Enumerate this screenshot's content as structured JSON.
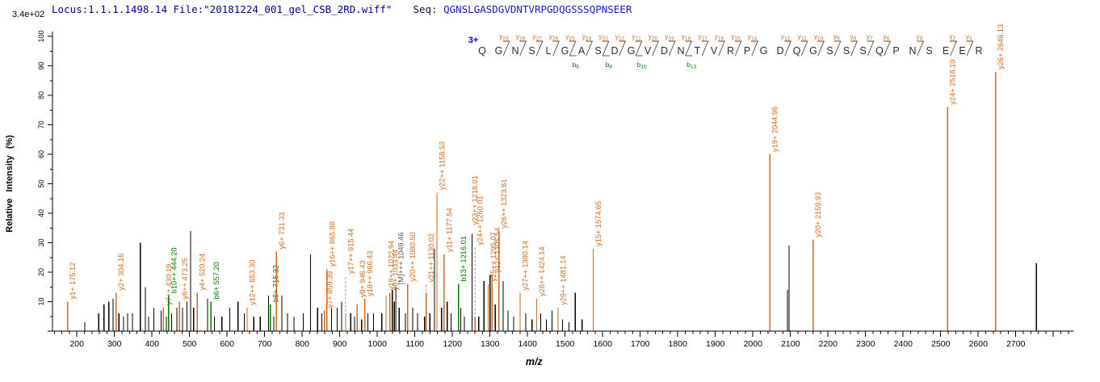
{
  "header": {
    "locus_file": "Locus:1.1.1.1498.14 File:\"20181224_001_gel_CSB_2RD.wiff\"",
    "seq_label": "Seq:",
    "sequence": "QGNSLGASDGVDNTVRPGDQGSSSQPNSEER"
  },
  "colors": {
    "y_ion": "#d2691e",
    "b_ion": "#007a00",
    "precursor": "#5a5a5a",
    "unassigned": "#000000",
    "axis": "#000000",
    "header_navy": "#00008b",
    "sequence_blue": "#1a1acd",
    "charge_blue": "#0000cc",
    "ladder_letter": "#2a2a2a",
    "connector_gray": "#999999"
  },
  "chart_data": {
    "type": "bar",
    "kind": "ms2-fragmentation-spectrum",
    "title": "",
    "xlabel": "m/z",
    "ylabel": "Relative Intensity (%)",
    "y_scale_note": "3.4e+02",
    "xlim": [
      135,
      2850
    ],
    "ylim": [
      0,
      100
    ],
    "x_major_tick_start": 200,
    "x_major_tick_end": 2700,
    "x_major_tick_step": 100,
    "x_minor_tick_step": 20,
    "y_major_tick_step": 10,
    "y_minor_tick_step": 5,
    "precursor_charge": "3+",
    "ladder": {
      "residues": [
        "Q",
        "G",
        "N",
        "S",
        "L",
        "G",
        "A",
        "S",
        "D",
        "G",
        "V",
        "D",
        "N",
        "T",
        "V",
        "R",
        "P",
        "G",
        "D",
        "Q",
        "G",
        "S",
        "S",
        "S",
        "Q",
        "P",
        "N",
        "S",
        "E",
        "E",
        "R"
      ],
      "y_ions": [
        {
          "pos": 2,
          "num": "29"
        },
        {
          "pos": 3,
          "num": "28"
        },
        {
          "pos": 4,
          "num": "27"
        },
        {
          "pos": 5,
          "num": "26"
        },
        {
          "pos": 6,
          "num": "25"
        },
        {
          "pos": 7,
          "num": "24"
        },
        {
          "pos": 8,
          "num": "23"
        },
        {
          "pos": 9,
          "num": "22"
        },
        {
          "pos": 10,
          "num": "21"
        },
        {
          "pos": 11,
          "num": "20"
        },
        {
          "pos": 12,
          "num": "19"
        },
        {
          "pos": 13,
          "num": "18"
        },
        {
          "pos": 14,
          "num": "17"
        },
        {
          "pos": 15,
          "num": "16"
        },
        {
          "pos": 16,
          "num": "15"
        },
        {
          "pos": 17,
          "num": "14"
        },
        {
          "pos": 19,
          "num": "12"
        },
        {
          "pos": 20,
          "num": "11"
        },
        {
          "pos": 21,
          "num": "10"
        },
        {
          "pos": 22,
          "num": "9"
        },
        {
          "pos": 23,
          "num": "8"
        },
        {
          "pos": 24,
          "num": "7"
        },
        {
          "pos": 25,
          "num": "6"
        },
        {
          "pos": 27,
          "num": "4"
        },
        {
          "pos": 29,
          "num": "2"
        },
        {
          "pos": 30,
          "num": "1"
        }
      ],
      "b_ions": [
        {
          "pos": 6,
          "num": "6"
        },
        {
          "pos": 8,
          "num": "8"
        },
        {
          "pos": 10,
          "num": "10"
        },
        {
          "pos": 13,
          "num": "13"
        }
      ]
    },
    "peaks": [
      {
        "mz": 175.12,
        "i": 10,
        "ion": "y",
        "label": "y1+ 175.12"
      },
      {
        "mz": 304.16,
        "i": 13,
        "ion": "y",
        "label": "y2+ 304.16"
      },
      {
        "mz": 430.19,
        "i": 8,
        "ion": "y",
        "label": "y7++ 430.19"
      },
      {
        "mz": 444.2,
        "i": 12,
        "ion": "b",
        "label": "b10++ 444.20"
      },
      {
        "mz": 473.25,
        "i": 10,
        "ion": "y",
        "label": "y8++ 473.25"
      },
      {
        "mz": 520.24,
        "i": 13,
        "ion": "y",
        "label": "y4+ 520.24"
      },
      {
        "mz": 557.2,
        "i": 10,
        "ion": "b",
        "label": "b6+ 557.20"
      },
      {
        "mz": 653.3,
        "i": 8,
        "ion": "y",
        "label": "y12++ 653.30"
      },
      {
        "mz": 715.32,
        "i": 9,
        "ion": "b",
        "label": "b8+ 715.32"
      },
      {
        "mz": 731.33,
        "i": 27,
        "ion": "y",
        "label": "y6+ 731.33"
      },
      {
        "mz": 859.39,
        "i": 7,
        "ion": "y",
        "label": "y7+ 859.39"
      },
      {
        "mz": 865.88,
        "i": 21,
        "ion": "y",
        "label": "y16++ 865.88"
      },
      {
        "mz": 915.44,
        "i": 6,
        "ion": "y",
        "label": "y17++ 915.44",
        "lift": 46,
        "dash": true
      },
      {
        "mz": 946.43,
        "i": 9,
        "ion": "y",
        "label": "y8+ 946.43",
        "lift": 6
      },
      {
        "mz": 966.43,
        "i": 11,
        "ion": "y",
        "label": "y18++ 966.43"
      },
      {
        "mz": 1022.94,
        "i": 12,
        "ion": "y",
        "label": "y19++ 1022.94",
        "lift": 4
      },
      {
        "mz": 1033.44,
        "i": 13,
        "ion": "y",
        "label": "y9+ 1033.44"
      },
      {
        "mz": 1049.46,
        "i": 15,
        "ion": "M",
        "label": "[M]+++ 1049.46"
      },
      {
        "mz": 1080.5,
        "i": 16,
        "ion": "y",
        "label": "y20++ 1080.50"
      },
      {
        "mz": 1130.02,
        "i": 13,
        "ion": "y",
        "label": "y21++ 1130.02",
        "lift": 10,
        "dash": true
      },
      {
        "mz": 1158.53,
        "i": 47,
        "ion": "y",
        "label": "y22++ 1158.53"
      },
      {
        "mz": 1177.54,
        "i": 26,
        "ion": "y",
        "label": "y11+ 1177.54"
      },
      {
        "mz": 1216.01,
        "i": 16,
        "ion": "b",
        "label": "b13+ 1216.01"
      },
      {
        "mz": 1216.01,
        "i": 16,
        "ion": "y",
        "label": "y23++ 1216.01",
        "lift": 70,
        "label_only": true,
        "dx": 14
      },
      {
        "mz": 1260.01,
        "i": 5,
        "ion": "y",
        "label": "y24++ 1260.01",
        "lift": 85,
        "dash": true
      },
      {
        "mz": 1295.07,
        "i": 16,
        "ion": "y",
        "label": "y25++ 1295.07"
      },
      {
        "mz": 1305.54,
        "i": 19,
        "ion": "y",
        "label": "y12+ 1305.54"
      },
      {
        "mz": 1323.61,
        "i": 34,
        "ion": "y",
        "label": "y26++ 1323.61"
      },
      {
        "mz": 1380.14,
        "i": 13,
        "ion": "y",
        "label": "y27++ 1380.14"
      },
      {
        "mz": 1424.14,
        "i": 11,
        "ion": "y",
        "label": "y28++ 1424.14"
      },
      {
        "mz": 1481.14,
        "i": 8,
        "ion": "y",
        "label": "y29++ 1481.14"
      },
      {
        "mz": 1574.65,
        "i": 28,
        "ion": "y",
        "label": "y15+ 1574.65"
      },
      {
        "mz": 2044.96,
        "i": 60,
        "ion": "y",
        "label": "y19+ 2044.96"
      },
      {
        "mz": 2159.93,
        "i": 31,
        "ion": "y",
        "label": "y20+ 2159.93"
      },
      {
        "mz": 2518.1,
        "i": 76,
        "ion": "y",
        "label": "y24+ 2518.10"
      },
      {
        "mz": 2646.13,
        "i": 88,
        "ion": "y",
        "label": "y26+ 2646.13"
      }
    ],
    "peaks_unassigned": [
      [
        221,
        3
      ],
      [
        258,
        6
      ],
      [
        272,
        9
      ],
      [
        285,
        10
      ],
      [
        296,
        11
      ],
      [
        312,
        6
      ],
      [
        324,
        5
      ],
      [
        335,
        6
      ],
      [
        348,
        6
      ],
      [
        369,
        30
      ],
      [
        382,
        15
      ],
      [
        391,
        5
      ],
      [
        405,
        8
      ],
      [
        424,
        7
      ],
      [
        438,
        5
      ],
      [
        452,
        6
      ],
      [
        466,
        8
      ],
      [
        481,
        8
      ],
      [
        493,
        10
      ],
      [
        503,
        34
      ],
      [
        511,
        8
      ],
      [
        548,
        11
      ],
      [
        566,
        5
      ],
      [
        586,
        5
      ],
      [
        607,
        8
      ],
      [
        629,
        10
      ],
      [
        646,
        6
      ],
      [
        671,
        5
      ],
      [
        688,
        5
      ],
      [
        710,
        12
      ],
      [
        724,
        5
      ],
      [
        746,
        12
      ],
      [
        761,
        6
      ],
      [
        778,
        5
      ],
      [
        803,
        6
      ],
      [
        822,
        26
      ],
      [
        841,
        8
      ],
      [
        852,
        6
      ],
      [
        878,
        8
      ],
      [
        893,
        8
      ],
      [
        905,
        10
      ],
      [
        929,
        6
      ],
      [
        939,
        5
      ],
      [
        958,
        4
      ],
      [
        975,
        6
      ],
      [
        990,
        6
      ],
      [
        1012,
        6
      ],
      [
        1040,
        14
      ],
      [
        1045,
        10
      ],
      [
        1058,
        8
      ],
      [
        1075,
        6
      ],
      [
        1094,
        8
      ],
      [
        1107,
        6
      ],
      [
        1126,
        5
      ],
      [
        1140,
        6
      ],
      [
        1152,
        28
      ],
      [
        1171,
        8
      ],
      [
        1186,
        10
      ],
      [
        1196,
        6
      ],
      [
        1222,
        8
      ],
      [
        1232,
        5
      ],
      [
        1252,
        33
      ],
      [
        1270,
        5
      ],
      [
        1284,
        17
      ],
      [
        1300,
        19
      ],
      [
        1314,
        9
      ],
      [
        1335,
        17
      ],
      [
        1348,
        7
      ],
      [
        1363,
        5
      ],
      [
        1395,
        6
      ],
      [
        1412,
        4
      ],
      [
        1435,
        6
      ],
      [
        1450,
        4
      ],
      [
        1465,
        7
      ],
      [
        1493,
        4
      ],
      [
        1510,
        3
      ],
      [
        1527,
        13
      ],
      [
        1545,
        4
      ],
      [
        2092,
        14
      ],
      [
        2096,
        29
      ],
      [
        2755,
        23
      ]
    ]
  }
}
